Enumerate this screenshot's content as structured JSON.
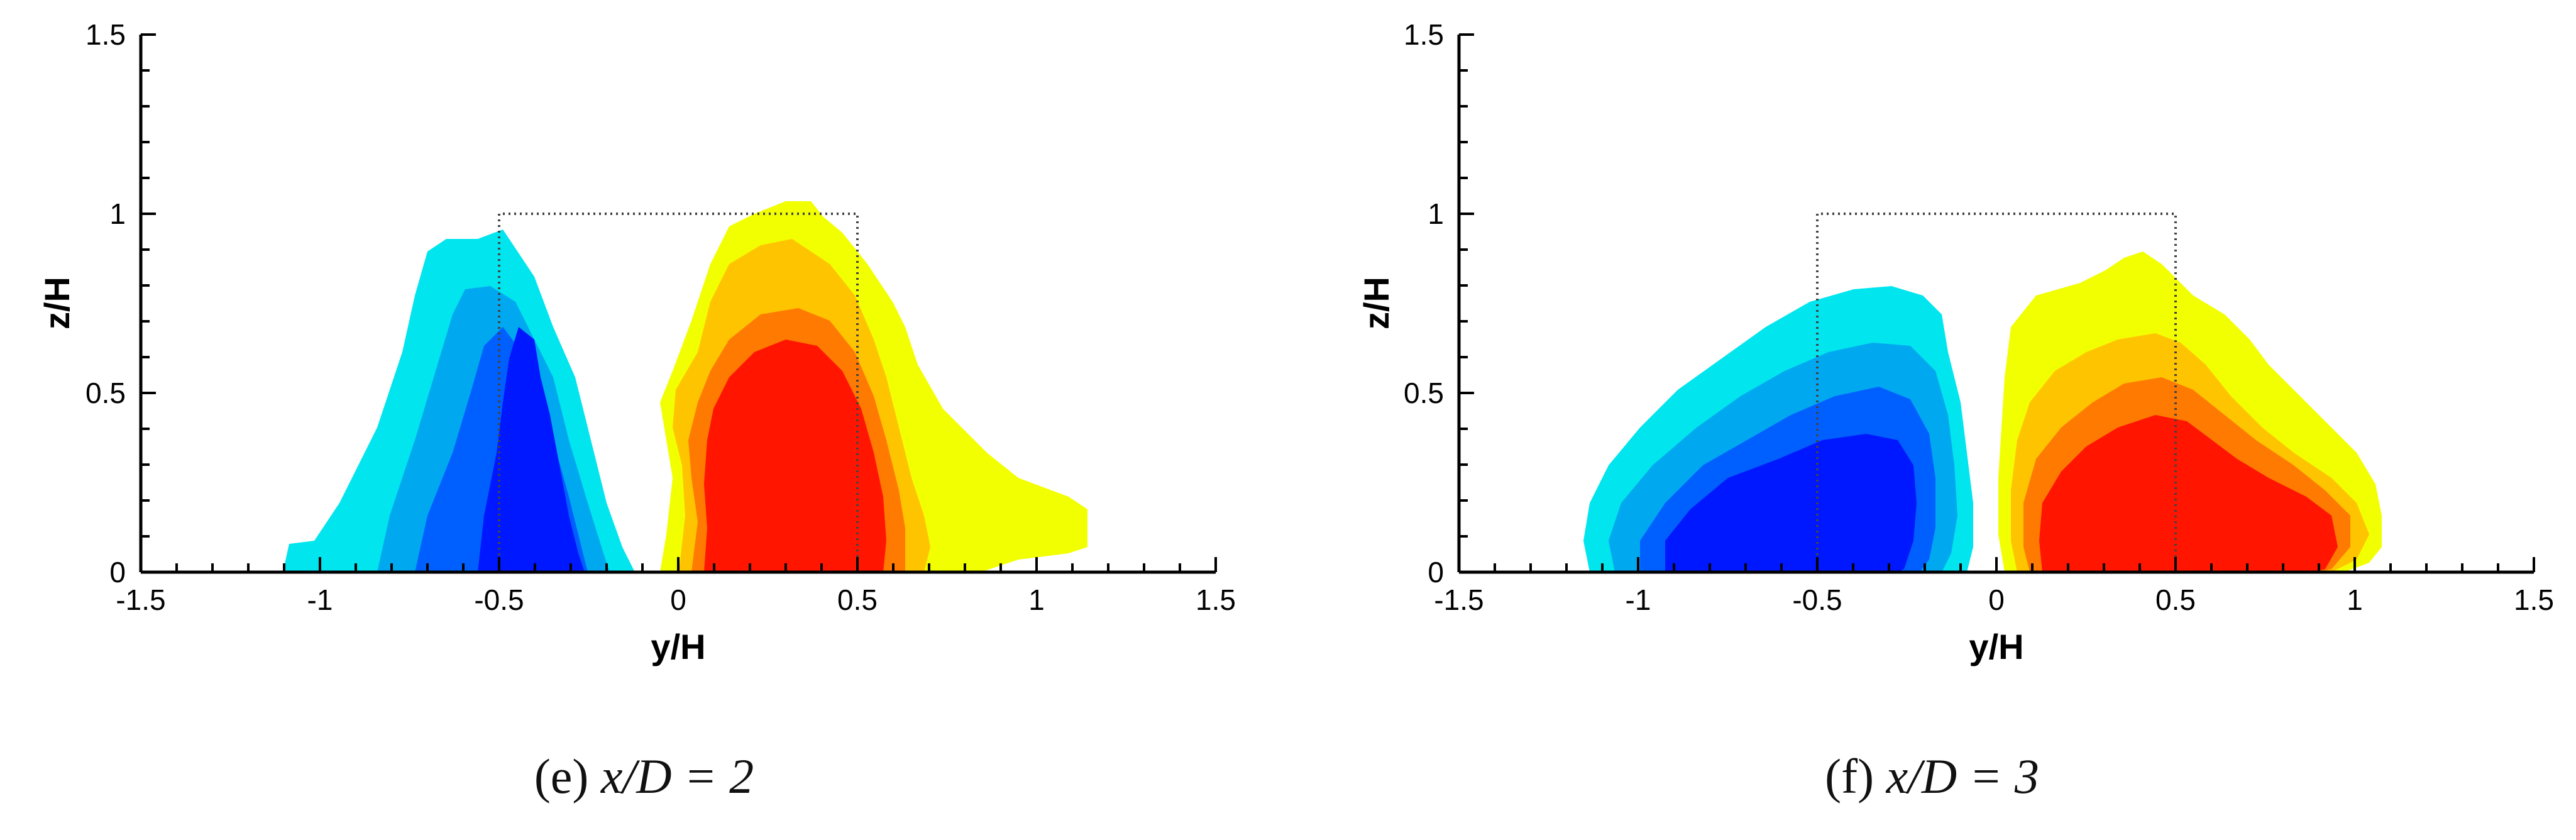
{
  "chart_data": [
    {
      "type": "contour",
      "caption_label": "(e)",
      "caption_math": "x/D = 2",
      "xlabel": "y/H",
      "ylabel": "z/H",
      "xlim": [
        -1.5,
        1.5
      ],
      "ylim": [
        0,
        1.5
      ],
      "xticks": [
        "-1.5",
        "-1",
        "-0.5",
        "0",
        "0.5",
        "1",
        "1.5"
      ],
      "yticks": [
        "0",
        "0.5",
        "1",
        "1.5"
      ],
      "legend": "none",
      "reference_box": {
        "y": [
          -0.5,
          0.5
        ],
        "z": [
          0,
          1.0
        ],
        "style": "dotted"
      },
      "levels": [
        {
          "name": "cyan",
          "color": "#00e5ee"
        },
        {
          "name": "light-blue",
          "color": "#00a8f0"
        },
        {
          "name": "mid-blue",
          "color": "#0060ff"
        },
        {
          "name": "deep-blue",
          "color": "#0018ff"
        },
        {
          "name": "yellow",
          "color": "#f2ff00"
        },
        {
          "name": "orange-yellow",
          "color": "#ffc400"
        },
        {
          "name": "orange",
          "color": "#ff7a00"
        },
        {
          "name": "red",
          "color": "#ff1500"
        }
      ],
      "negative_region": {
        "y_range": [
          -1.1,
          0.0
        ],
        "z_max": 0.95
      },
      "positive_region": {
        "y_range": [
          0.0,
          1.15
        ],
        "z_max": 1.05
      }
    },
    {
      "type": "contour",
      "caption_label": "(f)",
      "caption_math": "x/D = 3",
      "xlabel": "y/H",
      "ylabel": "z/H",
      "xlim": [
        -1.5,
        1.5
      ],
      "ylim": [
        0,
        1.5
      ],
      "xticks": [
        "-1.5",
        "-1",
        "-0.5",
        "0",
        "0.5",
        "1",
        "1.5"
      ],
      "yticks": [
        "0",
        "0.5",
        "1",
        "1.5"
      ],
      "legend": "none",
      "reference_box": {
        "y": [
          -0.5,
          0.5
        ],
        "z": [
          0,
          1.0
        ],
        "style": "dotted"
      },
      "levels": [
        {
          "name": "cyan",
          "color": "#00e5ee"
        },
        {
          "name": "light-blue",
          "color": "#00a8f0"
        },
        {
          "name": "mid-blue",
          "color": "#0060ff"
        },
        {
          "name": "deep-blue",
          "color": "#0018ff"
        },
        {
          "name": "yellow",
          "color": "#f2ff00"
        },
        {
          "name": "orange-yellow",
          "color": "#ffc400"
        },
        {
          "name": "orange",
          "color": "#ff7a00"
        },
        {
          "name": "red",
          "color": "#ff1500"
        }
      ],
      "negative_region": {
        "y_range": [
          -1.15,
          -0.05
        ],
        "z_max": 0.8
      },
      "positive_region": {
        "y_range": [
          0.0,
          1.25
        ],
        "z_max": 0.9
      }
    }
  ]
}
